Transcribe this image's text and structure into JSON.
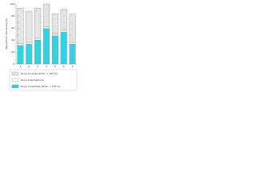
{
  "chart_data": {
    "type": "stacked_bar",
    "y_label": "Répartition des zones (%)",
    "categories": [
      "1",
      "2",
      "3",
      "4",
      "5",
      "6",
      "7"
    ],
    "series": [
      {
        "name": "Zone consolidée (Prob. < 100 %)",
        "color": "#2fd3e2",
        "values": [
          31,
          33,
          40,
          59,
          47,
          53,
          33
        ]
      },
      {
        "name": "Zone intermédiaire",
        "color": "#ffffff",
        "values": [
          3,
          3,
          3,
          3,
          3,
          3,
          3
        ]
      },
      {
        "name": "Zone excavée (Prob. > 100 %)",
        "color": "hatch",
        "values": [
          59,
          52,
          50,
          38,
          34,
          35,
          47
        ]
      }
    ],
    "ylim": [
      0,
      100
    ],
    "yticks": [
      0,
      20,
      40,
      60,
      80,
      100
    ]
  }
}
